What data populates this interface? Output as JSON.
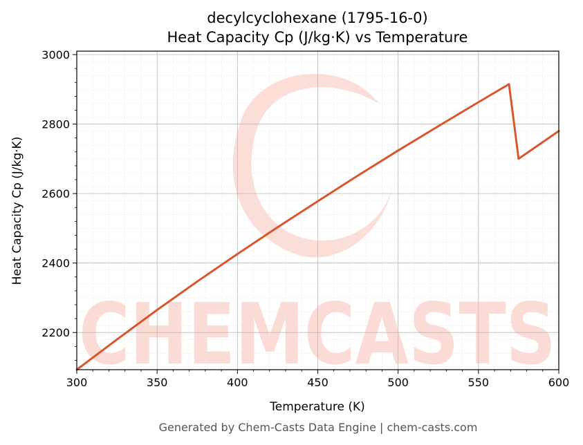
{
  "chart_data": {
    "type": "line",
    "title": "decylcyclohexane (1795-16-0)",
    "subtitle": "Heat Capacity Cp (J/kg·K) vs Temperature",
    "xlabel": "Temperature (K)",
    "ylabel": "Heat Capacity Cp (J/kg·K)",
    "xlim": [
      300,
      600
    ],
    "ylim": [
      2093,
      3010
    ],
    "xticks": [
      300,
      350,
      400,
      450,
      500,
      550,
      600
    ],
    "yticks": [
      2200,
      2400,
      2600,
      2800,
      3000
    ],
    "grid": true,
    "line_color": "#d9552b",
    "series": [
      {
        "x": [
          300,
          325,
          350,
          375,
          400,
          425,
          450,
          475,
          500,
          525,
          550,
          569,
          575,
          600
        ],
        "values": [
          2093,
          2180,
          2265,
          2347,
          2426,
          2503,
          2578,
          2652,
          2724,
          2794,
          2863,
          2915,
          2700,
          2780
        ]
      }
    ]
  },
  "watermark": {
    "text": "CHEMCASTS",
    "color": "#fbd3cb"
  },
  "footer": "Generated by Chem-Casts Data Engine | chem-casts.com"
}
